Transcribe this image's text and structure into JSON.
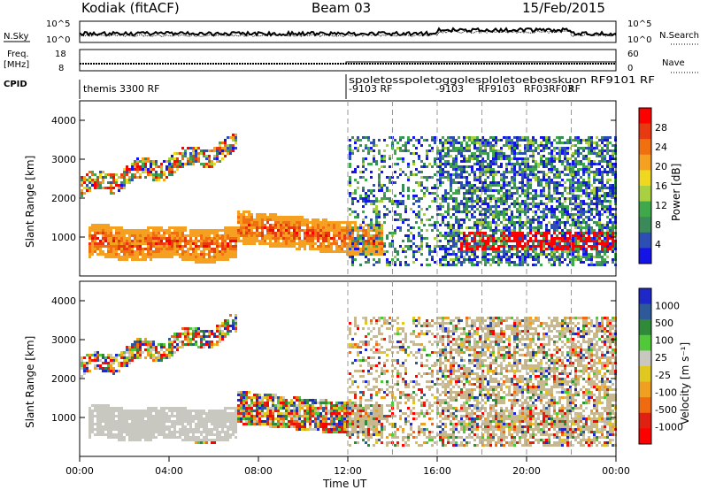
{
  "header": {
    "station": "Kodiak (fitACF)",
    "beam": "Beam 03",
    "date": "15/Feb/2015"
  },
  "labels": {
    "nsky": "N.Sky",
    "freq_line1": "Freq.",
    "freq_line2": "[MHz]",
    "cpid": "CPID",
    "nsearch": "N.Search",
    "nave": "Nave",
    "xlabel": "Time UT",
    "ylabel": "Slant Range [km]"
  },
  "colors": {
    "power_scale": [
      "#1414e6",
      "#2d4fb4",
      "#3a8a5a",
      "#3fa84a",
      "#a8d040",
      "#f0d820",
      "#f5a020",
      "#f07010",
      "#e83a10",
      "#ff0000"
    ],
    "velocity_scale": [
      "#1e28c8",
      "#2e5a9a",
      "#2f8a3a",
      "#50c83a",
      "#c8c8c0",
      "#e0c820",
      "#f0a020",
      "#f06a10",
      "#e02010",
      "#ff0000"
    ]
  },
  "chart_data": [
    {
      "type": "line",
      "name": "noise",
      "left_ticks": [
        "10^5",
        "10^0"
      ],
      "right_ticks": [
        "10^5",
        "10^0"
      ],
      "ylabel_left": "N.Sky",
      "ylabel_right": "N.Search"
    },
    {
      "type": "line",
      "name": "frequency",
      "left_ticks": [
        "18",
        "8"
      ],
      "right_ticks": [
        "60",
        "0"
      ],
      "ylabel_left": "Freq. [MHz]",
      "ylabel_right": "Nave"
    },
    {
      "type": "table",
      "name": "cpid",
      "entries": [
        {
          "text": "themis 3300 RF",
          "x": 0.0
        },
        {
          "text": "spoletosspoletoggolesploletoebeoskuon RF9101 RF",
          "x": 12.0
        },
        {
          "text": "-9103 RF",
          "x": 12.0
        },
        {
          "text": "-9103",
          "x": 16.0
        },
        {
          "text": "RF9103",
          "x": 18.0
        },
        {
          "text": "RF03RF03",
          "x": 20.0
        },
        {
          "text": "RF",
          "x": 22.0
        }
      ]
    },
    {
      "type": "heatmap",
      "name": "power",
      "x_range_hours": [
        0,
        24
      ],
      "ylim": [
        0,
        4500
      ],
      "yticks": [
        1000,
        2000,
        3000,
        4000
      ],
      "xticks": [
        "00:00",
        "04:00",
        "08:00",
        "12:00",
        "16:00",
        "20:00",
        "00:00"
      ],
      "colorbar_title": "Power [dB]",
      "colorbar_ticks": [
        "4",
        "8",
        "12",
        "16",
        "20",
        "24",
        "28"
      ]
    },
    {
      "type": "heatmap",
      "name": "velocity",
      "x_range_hours": [
        0,
        24
      ],
      "ylim": [
        0,
        4500
      ],
      "yticks": [
        1000,
        2000,
        3000,
        4000
      ],
      "xticks": [
        "00:00",
        "04:00",
        "08:00",
        "12:00",
        "16:00",
        "20:00",
        "00:00"
      ],
      "colorbar_title": "Velocity [m s⁻¹]",
      "colorbar_ticks": [
        "1000",
        "500",
        "100",
        "25",
        "-25",
        "-100",
        "-500",
        "-1000"
      ]
    }
  ]
}
